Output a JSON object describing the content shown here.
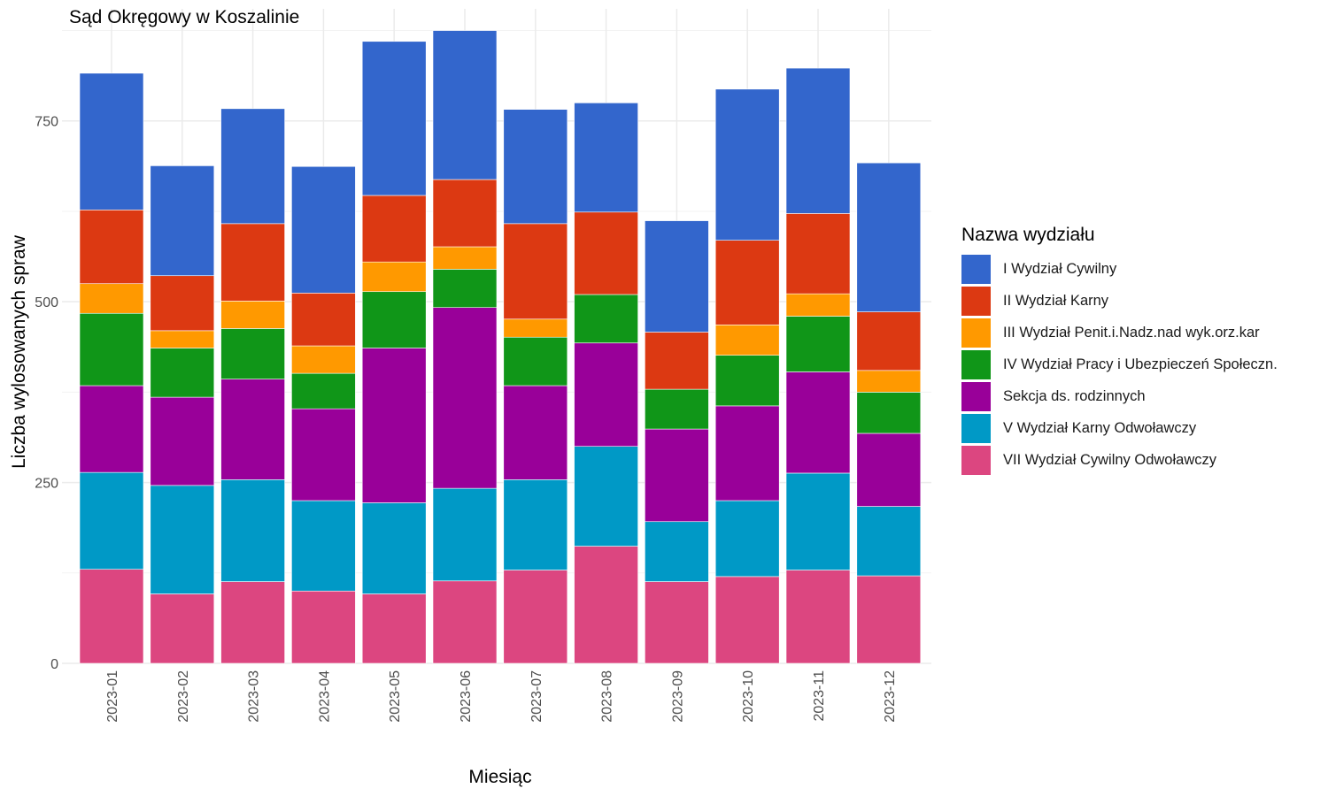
{
  "chart_data": {
    "type": "bar",
    "stacked": true,
    "title": "Sąd Okręgowy w Koszalinie",
    "xlabel": "Miesiąc",
    "ylabel": "Liczba wylosowanych spraw",
    "ylim": [
      0,
      905
    ],
    "yticks": [
      0,
      250,
      500,
      750
    ],
    "ytick_labels": [
      "0",
      "250",
      "500",
      "750"
    ],
    "grid": true,
    "legend_title": "Nazwa wydziału",
    "legend_position": "right",
    "categories": [
      "2023-01",
      "2023-02",
      "2023-03",
      "2023-04",
      "2023-05",
      "2023-06",
      "2023-07",
      "2023-08",
      "2023-09",
      "2023-10",
      "2023-11",
      "2023-12"
    ],
    "series": [
      {
        "name": "VII Wydział Cywilny Odwoławczy",
        "color": "#DC4680",
        "values": [
          130,
          96,
          113,
          100,
          96,
          114,
          129,
          162,
          113,
          120,
          129,
          121
        ]
      },
      {
        "name": "V Wydział Karny Odwoławczy",
        "color": "#0099C6",
        "values": [
          134,
          150,
          141,
          125,
          126,
          128,
          125,
          138,
          83,
          105,
          134,
          96
        ]
      },
      {
        "name": "Sekcja ds. rodzinnych",
        "color": "#990099",
        "values": [
          120,
          122,
          139,
          127,
          214,
          250,
          130,
          143,
          128,
          131,
          140,
          101
        ]
      },
      {
        "name": "IV Wydział Pracy i Ubezpieczeń Społeczn.",
        "color": "#109618",
        "values": [
          100,
          68,
          70,
          49,
          78,
          53,
          67,
          67,
          55,
          70,
          77,
          57
        ]
      },
      {
        "name": "III Wydział Penit.i.Nadz.nad wyk.orz.kar",
        "color": "#FF9900",
        "values": [
          41,
          24,
          38,
          38,
          41,
          31,
          25,
          0,
          0,
          42,
          31,
          30
        ]
      },
      {
        "name": "II Wydział Karny",
        "color": "#DC3912",
        "values": [
          102,
          76,
          107,
          73,
          92,
          93,
          132,
          114,
          79,
          117,
          111,
          81
        ]
      },
      {
        "name": "I Wydział Cywilny",
        "color": "#3366CC",
        "values": [
          189,
          152,
          159,
          175,
          213,
          206,
          158,
          151,
          154,
          209,
          201,
          206
        ]
      }
    ]
  }
}
